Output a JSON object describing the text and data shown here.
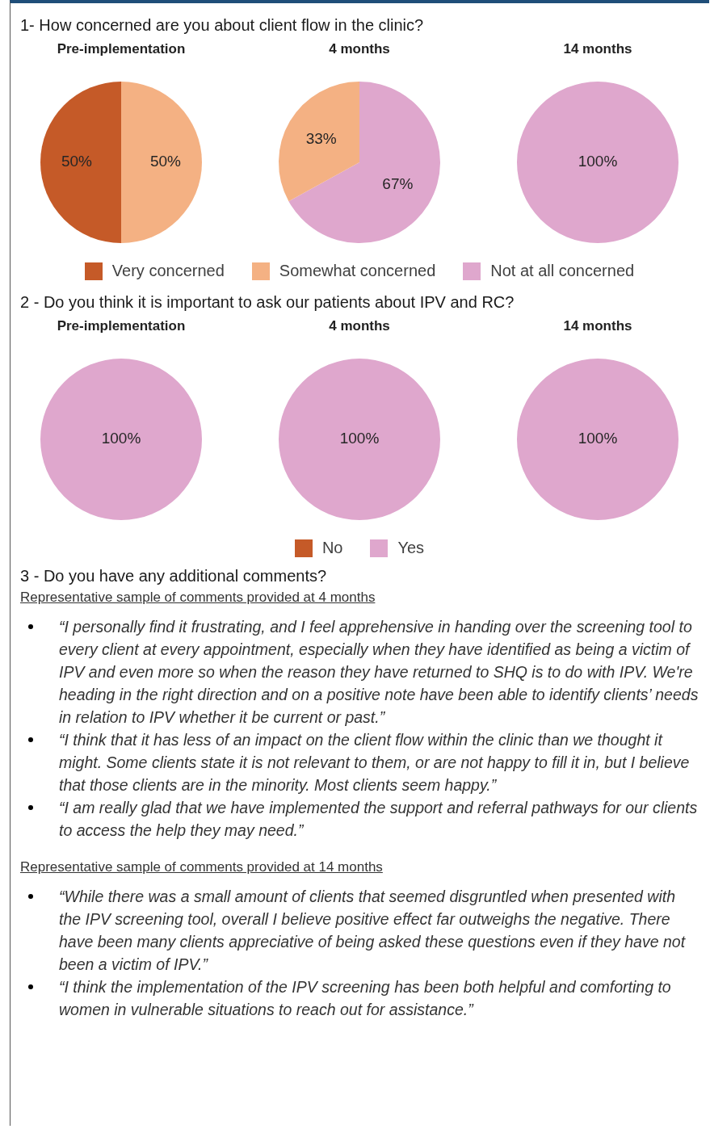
{
  "chart_data": [
    {
      "type": "pie",
      "title": "1- How concerned are you about client flow in the clinic?",
      "categories": [
        "Very concerned",
        "Somewhat concerned",
        "Not at all concerned"
      ],
      "colors": [
        "#c55a28",
        "#f4b183",
        "#dfa7cd"
      ],
      "legend": "bottom",
      "series": [
        {
          "name": "Pre-implementation",
          "values": [
            50,
            50,
            0
          ],
          "value_labels": [
            "50%",
            "50%",
            null
          ]
        },
        {
          "name": "4 months",
          "values": [
            0,
            33,
            67
          ],
          "value_labels": [
            null,
            "33%",
            "67%"
          ]
        },
        {
          "name": "14 months",
          "values": [
            0,
            0,
            100
          ],
          "value_labels": [
            null,
            null,
            "100%"
          ]
        }
      ]
    },
    {
      "type": "pie",
      "title": "2 - Do you think it is important to ask our patients about IPV and RC?",
      "categories": [
        "No",
        "Yes"
      ],
      "colors": [
        "#c55a28",
        "#dfa7cd"
      ],
      "legend": "bottom",
      "series": [
        {
          "name": "Pre-implementation",
          "values": [
            0,
            100
          ],
          "value_labels": [
            null,
            "100%"
          ]
        },
        {
          "name": "4 months",
          "values": [
            0,
            100
          ],
          "value_labels": [
            null,
            "100%"
          ]
        },
        {
          "name": "14 months",
          "values": [
            0,
            100
          ],
          "value_labels": [
            null,
            "100%"
          ]
        }
      ]
    },
    {
      "type": "other",
      "title": "3 - Do you have any additional comments?",
      "subtitle": "Representative sample of comments provided at 4 months",
      "annotations": [
        "“I personally find it frustrating, and I feel apprehensive in handing over the screening tool to every client at every appointment, especially when they have identified as being a victim of IPV and even more so when the reason they have returned to SHQ is to do with IPV. We're heading in the right direction and on a positive note have been able to identify clients’ needs in relation to IPV whether it be current or past.”",
        "“I think that it has less of an impact on the client flow within the clinic than we thought it might. Some clients state it is not relevant to them, or are not happy to fill it in, but I believe that those clients are in the minority. Most clients seem happy.”",
        "“I am really glad that we have implemented the support and referral pathways for our clients to access the help they may need.”"
      ]
    },
    {
      "type": "other",
      "subtitle": "Representative sample of comments provided at 14 months",
      "annotations": [
        "“While there was a small amount of clients that seemed disgruntled when presented with the IPV screening tool, overall I believe positive effect far outweighs the negative. There have been many clients appreciative of being asked these questions even if they have not been a victim of IPV.”",
        "“I think the implementation of the IPV screening has been both helpful and comforting to women in vulnerable situations to reach out for assistance.”"
      ]
    }
  ]
}
